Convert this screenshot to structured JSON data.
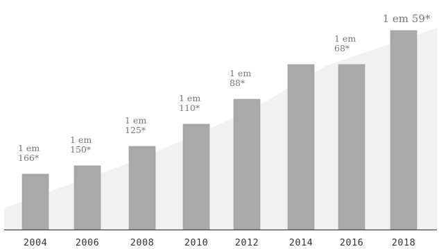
{
  "chart_data": {
    "type": "bar",
    "categories": [
      "2004",
      "2006",
      "2008",
      "2010",
      "2012",
      "2014",
      "2016",
      "2018"
    ],
    "values": [
      166,
      150,
      125,
      110,
      88,
      null,
      68,
      59
    ],
    "data_labels": [
      [
        "1 em",
        "166*"
      ],
      [
        "1 em",
        "150*"
      ],
      [
        "1 em",
        "125*"
      ],
      [
        "1 em",
        "110*"
      ],
      [
        "1 em",
        "88*"
      ],
      null,
      [
        "1 em",
        "68*"
      ],
      [
        "1 em 59*"
      ]
    ],
    "title": "",
    "xlabel": "",
    "ylabel": "",
    "grid": false,
    "legend": "none"
  },
  "colors": {
    "bar": "#a9a9a9",
    "bar_edge": "#9a9a9a",
    "text": "#777777",
    "axis": "#444444",
    "background_wedge": "#f1f1f1"
  }
}
